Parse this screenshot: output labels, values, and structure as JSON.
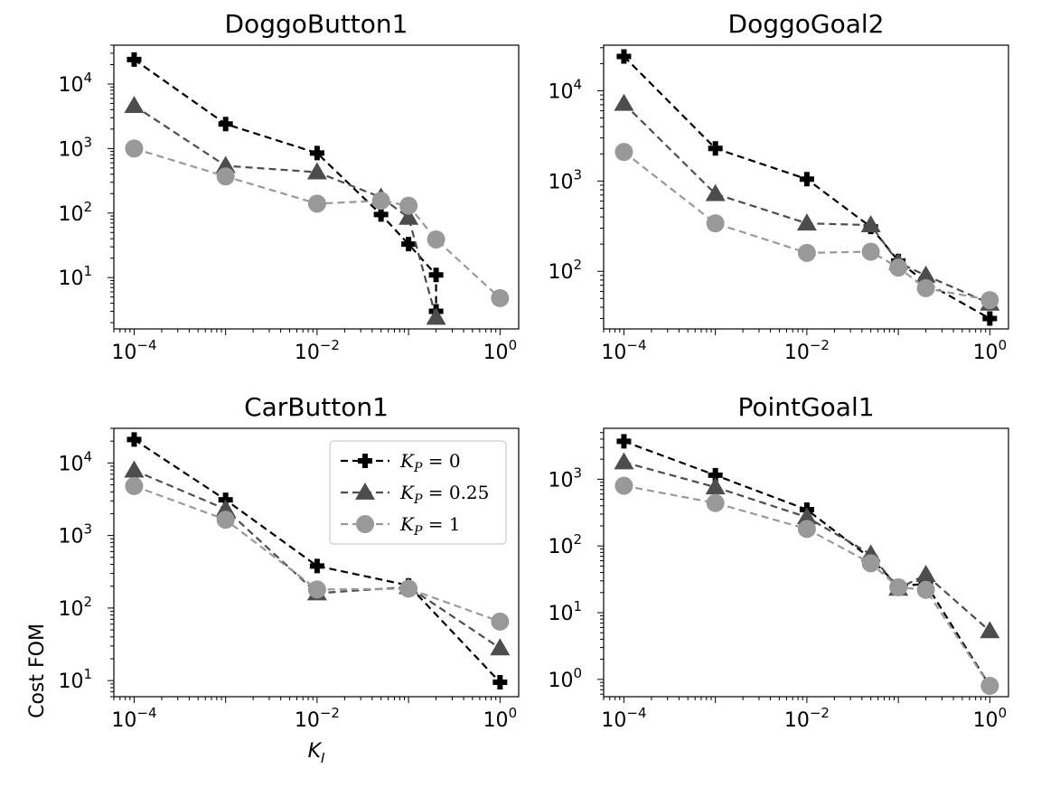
{
  "chart_data": [
    {
      "type": "line",
      "title": "DoggoButton1",
      "xscale": "log",
      "yscale": "log",
      "xlim": [
        6e-05,
        1.6
      ],
      "ylim": [
        1.6,
        40000
      ],
      "xticks": [
        {
          "base": "10",
          "exp": "−4"
        },
        {
          "base": "10",
          "exp": "−2"
        },
        {
          "base": "10",
          "exp": "0"
        }
      ],
      "yticks": [
        {
          "base": "10",
          "exp": "1"
        },
        {
          "base": "10",
          "exp": "2"
        },
        {
          "base": "10",
          "exp": "3"
        },
        {
          "base": "10",
          "exp": "4"
        }
      ],
      "xlabel": "",
      "ylabel": "",
      "series": [
        {
          "name": "K_P = 0",
          "x": [
            0.0001,
            0.001,
            0.01,
            0.05,
            0.1,
            0.2,
            0.2
          ],
          "y": [
            24000,
            2400,
            850,
            95,
            33,
            11,
            3
          ]
        },
        {
          "name": "K_P = 0.25",
          "x": [
            0.0001,
            0.001,
            0.01,
            0.05,
            0.1,
            0.2
          ],
          "y": [
            4600,
            540,
            430,
            175,
            85,
            2.4
          ]
        },
        {
          "name": "K_P = 1",
          "x": [
            0.0001,
            0.001,
            0.01,
            0.05,
            0.1,
            0.2,
            1.0
          ],
          "y": [
            1000,
            370,
            140,
            155,
            130,
            39,
            4.8
          ]
        }
      ]
    },
    {
      "type": "line",
      "title": "DoggoGoal2",
      "xscale": "log",
      "yscale": "log",
      "xlim": [
        6e-05,
        1.6
      ],
      "ylim": [
        23,
        32000
      ],
      "xticks": [
        {
          "base": "10",
          "exp": "−4"
        },
        {
          "base": "10",
          "exp": "−2"
        },
        {
          "base": "10",
          "exp": "0"
        }
      ],
      "yticks": [
        {
          "base": "10",
          "exp": "2"
        },
        {
          "base": "10",
          "exp": "3"
        },
        {
          "base": "10",
          "exp": "4"
        }
      ],
      "xlabel": "",
      "ylabel": "",
      "series": [
        {
          "name": "K_P = 0",
          "x": [
            0.0001,
            0.001,
            0.01,
            0.05,
            0.1,
            0.2,
            1.0
          ],
          "y": [
            24000,
            2300,
            1050,
            310,
            130,
            75,
            30
          ]
        },
        {
          "name": "K_P = 0.25",
          "x": [
            0.0001,
            0.001,
            0.01,
            0.05,
            0.1,
            0.2,
            1.0
          ],
          "y": [
            7200,
            720,
            340,
            325,
            125,
            90,
            44
          ]
        },
        {
          "name": "K_P = 1",
          "x": [
            0.0001,
            0.001,
            0.01,
            0.05,
            0.1,
            0.2,
            1.0
          ],
          "y": [
            2100,
            340,
            160,
            165,
            110,
            65,
            48
          ]
        }
      ]
    },
    {
      "type": "line",
      "title": "CarButton1",
      "xscale": "log",
      "yscale": "log",
      "xlim": [
        6e-05,
        1.6
      ],
      "ylim": [
        6,
        30000
      ],
      "xticks": [
        {
          "base": "10",
          "exp": "−4"
        },
        {
          "base": "10",
          "exp": "−2"
        },
        {
          "base": "10",
          "exp": "0"
        }
      ],
      "yticks": [
        {
          "base": "10",
          "exp": "1"
        },
        {
          "base": "10",
          "exp": "2"
        },
        {
          "base": "10",
          "exp": "3"
        },
        {
          "base": "10",
          "exp": "4"
        }
      ],
      "xlabel": "K_I",
      "ylabel": "Cost FOM",
      "legend": {
        "loc": "upper right",
        "entries": [
          {
            "lhs": "K",
            "sub": "P",
            "rhs": " = 0"
          },
          {
            "lhs": "K",
            "sub": "P",
            "rhs": " = 0.25"
          },
          {
            "lhs": "K",
            "sub": "P",
            "rhs": " = 1"
          }
        ]
      },
      "series": [
        {
          "name": "K_P = 0",
          "x": [
            0.0001,
            0.001,
            0.01,
            0.1,
            1.0
          ],
          "y": [
            21000,
            3100,
            380,
            205,
            9.5
          ]
        },
        {
          "name": "K_P = 0.25",
          "x": [
            0.0001,
            0.001,
            0.01,
            0.1,
            1.0
          ],
          "y": [
            7900,
            2300,
            160,
            195,
            28
          ]
        },
        {
          "name": "K_P = 1",
          "x": [
            0.0001,
            0.001,
            0.01,
            0.1,
            1.0
          ],
          "y": [
            4800,
            1650,
            180,
            185,
            65
          ]
        }
      ]
    },
    {
      "type": "line",
      "title": "PointGoal1",
      "xscale": "log",
      "yscale": "log",
      "xlim": [
        6e-05,
        1.6
      ],
      "ylim": [
        0.55,
        5800
      ],
      "xticks": [
        {
          "base": "10",
          "exp": "−4"
        },
        {
          "base": "10",
          "exp": "−2"
        },
        {
          "base": "10",
          "exp": "0"
        }
      ],
      "yticks": [
        {
          "base": "10",
          "exp": "0"
        },
        {
          "base": "10",
          "exp": "1"
        },
        {
          "base": "10",
          "exp": "2"
        },
        {
          "base": "10",
          "exp": "3"
        }
      ],
      "xlabel": "",
      "ylabel": "",
      "series": [
        {
          "name": "K_P = 0",
          "x": [
            0.0001,
            0.001,
            0.01,
            0.05,
            0.1,
            0.2,
            1.0
          ],
          "y": [
            3700,
            1150,
            350,
            65,
            25,
            27,
            0.8
          ]
        },
        {
          "name": "K_P = 0.25",
          "x": [
            0.0001,
            0.001,
            0.01,
            0.05,
            0.1,
            0.2,
            1.0
          ],
          "y": [
            1800,
            760,
            270,
            75,
            23,
            37,
            5.3
          ]
        },
        {
          "name": "K_P = 1",
          "x": [
            0.0001,
            0.001,
            0.01,
            0.05,
            0.1,
            0.2,
            1.0
          ],
          "y": [
            800,
            440,
            180,
            55,
            24,
            22,
            0.8
          ]
        }
      ]
    }
  ],
  "series_styles": [
    {
      "color": "#000000",
      "marker": "plus"
    },
    {
      "color": "#4d4d4d",
      "marker": "triangle"
    },
    {
      "color": "#999999",
      "marker": "circle"
    }
  ],
  "grid": false
}
